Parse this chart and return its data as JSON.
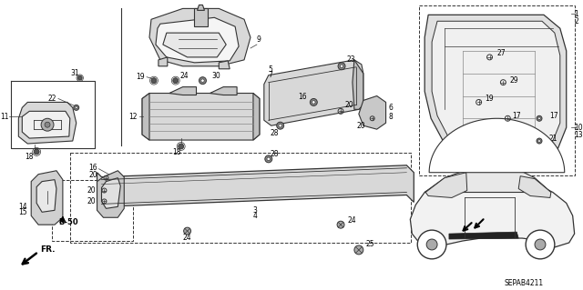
{
  "background_color": "#ffffff",
  "diagram_id": "SEPAB4211",
  "fig_width": 6.4,
  "fig_height": 3.19,
  "dpi": 100
}
